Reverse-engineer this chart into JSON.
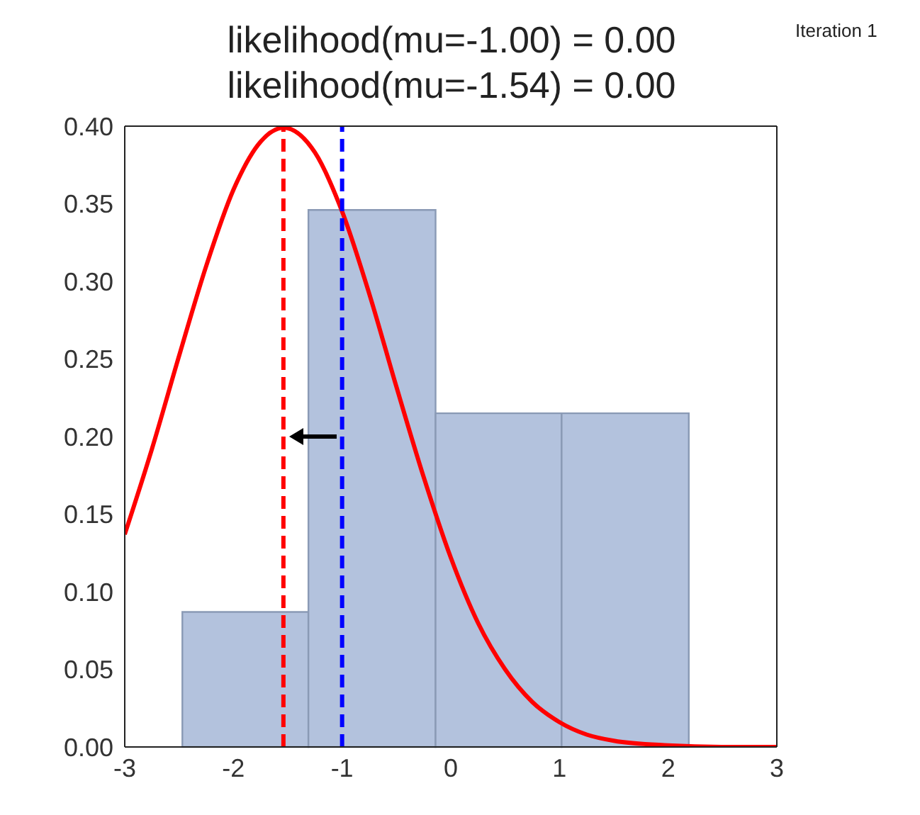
{
  "chart_data": {
    "type": "histogram",
    "title": "likelihood(mu=-1.00) = 0.00\nlikelihood(mu=-1.54) = 0.00",
    "annotations": [
      "Iteration 1"
    ],
    "series": [
      {
        "type": "histogram",
        "color": "#b3c2dd",
        "bins": [
          -2.47,
          -1.31,
          -0.14,
          1.02,
          2.19
        ],
        "values": [
          0.087,
          0.346,
          0.215,
          0.215
        ]
      },
      {
        "type": "line",
        "color": "#ff0000",
        "x": [
          -3,
          -2.75,
          -2.5,
          -2.25,
          -2,
          -1.75,
          -1.54,
          -1.25,
          -1,
          -0.75,
          -0.5,
          -0.25,
          0,
          0.25,
          0.5,
          0.75,
          1,
          1.25,
          1.5,
          2,
          2.5,
          3
        ],
        "values": [
          0.137,
          0.192,
          0.252,
          0.31,
          0.359,
          0.39,
          0.399,
          0.383,
          0.345,
          0.292,
          0.232,
          0.174,
          0.122,
          0.08,
          0.05,
          0.029,
          0.016,
          0.008,
          0.004,
          0.001,
          0,
          0
        ]
      }
    ],
    "ref_lines": [
      {
        "axis": "x",
        "value": -1.54,
        "color": "#ff0000",
        "line_style": "dashed"
      },
      {
        "axis": "x",
        "value": -1,
        "color": "#0000ff",
        "line_style": "dashed"
      }
    ],
    "xlim": [
      -3,
      3
    ],
    "xticks": [
      -3,
      -2,
      -1,
      0,
      1,
      2,
      3
    ],
    "ylim": [
      0,
      0.4
    ],
    "yticks": [
      {
        "value": 0,
        "label": "0.00"
      },
      {
        "value": 0.05,
        "label": "0.05"
      },
      {
        "value": 0.1,
        "label": "0.10"
      },
      {
        "value": 0.15,
        "label": "0.15"
      },
      {
        "value": 0.2,
        "label": "0.20"
      },
      {
        "value": 0.25,
        "label": "0.25"
      },
      {
        "value": 0.3,
        "label": "0.30"
      },
      {
        "value": 0.35,
        "label": "0.35"
      },
      {
        "value": 0.4,
        "label": "0.40"
      }
    ]
  }
}
